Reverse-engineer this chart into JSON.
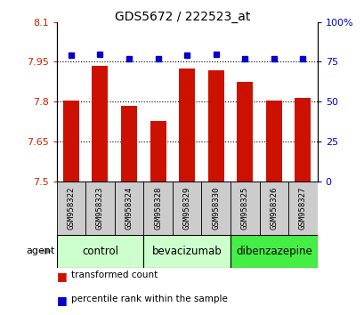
{
  "title": "GDS5672 / 222523_at",
  "samples": [
    "GSM958322",
    "GSM958323",
    "GSM958324",
    "GSM958328",
    "GSM958329",
    "GSM958330",
    "GSM958325",
    "GSM958326",
    "GSM958327"
  ],
  "bar_values": [
    7.803,
    7.935,
    7.784,
    7.728,
    7.925,
    7.918,
    7.875,
    7.803,
    7.815
  ],
  "percentile_values": [
    79,
    80,
    77,
    77,
    79,
    80,
    77,
    77,
    77
  ],
  "bar_color": "#cc1100",
  "dot_color": "#0000cc",
  "ylim_left": [
    7.5,
    8.1
  ],
  "ylim_right": [
    0,
    100
  ],
  "yticks_left": [
    7.5,
    7.65,
    7.8,
    7.95,
    8.1
  ],
  "ytick_labels_left": [
    "7.5",
    "7.65",
    "7.8",
    "7.95",
    "8.1"
  ],
  "yticks_right": [
    0,
    25,
    50,
    75,
    100
  ],
  "ytick_labels_right": [
    "0",
    "25",
    "50",
    "75",
    "100%"
  ],
  "groups": [
    {
      "label": "control",
      "indices": [
        0,
        1,
        2
      ],
      "color": "#ccffcc"
    },
    {
      "label": "bevacizumab",
      "indices": [
        3,
        4,
        5
      ],
      "color": "#ccffcc"
    },
    {
      "label": "dibenzazepine",
      "indices": [
        6,
        7,
        8
      ],
      "color": "#44ee44"
    }
  ],
  "agent_label": "agent",
  "legend_bar_label": "transformed count",
  "legend_dot_label": "percentile rank within the sample",
  "bar_width": 0.55,
  "background_color": "#ffffff",
  "gray_bg": "#cccccc",
  "grid_color": "#000000",
  "grid_alpha": 0.4
}
